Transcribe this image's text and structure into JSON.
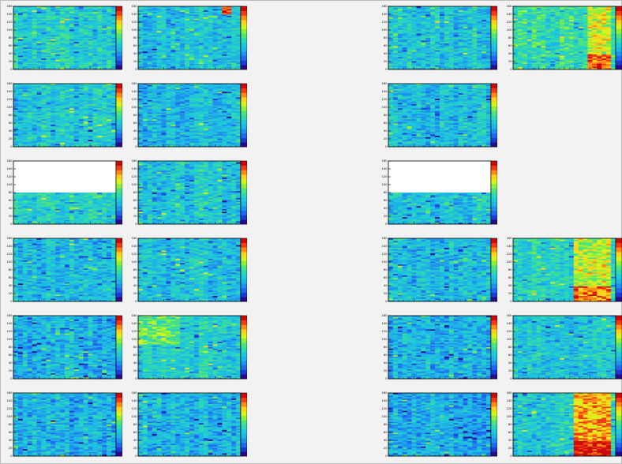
{
  "canvas": {
    "background": "#f2f2f2",
    "grid": {
      "rows": 6,
      "cols": 4
    }
  },
  "palette": [
    "#2a0a8a",
    "#1a3bd6",
    "#2266f0",
    "#1f90ee",
    "#1fb3e6",
    "#20c9d8",
    "#2fd8b0",
    "#4ee37c",
    "#8ef03a",
    "#d8f21c",
    "#ffd11a",
    "#ff8a14",
    "#f23a14",
    "#cc0a0a"
  ],
  "chart_data": [
    {
      "panel": "r1c1",
      "type": "heatmap",
      "row": 1,
      "col": 1,
      "ylim": [
        0,
        160
      ],
      "yticks": [
        0,
        20,
        40,
        60,
        80,
        100,
        120,
        140,
        160
      ],
      "empty_above": null,
      "hot_region": null,
      "base_level": 5.2,
      "noise": 1.6,
      "seed": 11
    },
    {
      "panel": "r1c2",
      "type": "heatmap",
      "row": 1,
      "col": 2,
      "ylim": [
        0,
        160
      ],
      "yticks": [
        0,
        20,
        40,
        60,
        80,
        100,
        120,
        140,
        160
      ],
      "empty_above": null,
      "hot_region": {
        "x": [
          0.82,
          0.9
        ],
        "y": [
          0.86,
          1.0
        ],
        "level": 13
      },
      "base_level": 4.6,
      "noise": 1.5,
      "seed": 12
    },
    {
      "panel": "r1c3",
      "type": "heatmap",
      "row": 1,
      "col": 3,
      "ylim": [
        0,
        160
      ],
      "yticks": [
        0,
        20,
        40,
        60,
        80,
        100,
        120,
        140,
        160
      ],
      "empty_above": null,
      "hot_region": null,
      "base_level": 4.8,
      "noise": 1.7,
      "seed": 13
    },
    {
      "panel": "r1c4",
      "type": "heatmap",
      "row": 1,
      "col": 4,
      "ylim": [
        0,
        160
      ],
      "yticks": [
        0,
        20,
        40,
        60,
        80,
        100,
        120,
        140,
        160
      ],
      "empty_above": null,
      "hot_region": {
        "x": [
          0.74,
          0.96
        ],
        "y": [
          0.0,
          1.0
        ],
        "level": 9
      },
      "base_level": 6.0,
      "noise": 1.6,
      "seed": 14
    },
    {
      "panel": "r2c1",
      "type": "heatmap",
      "row": 2,
      "col": 1,
      "ylim": [
        0,
        160
      ],
      "yticks": [
        0,
        20,
        40,
        60,
        80,
        100,
        120,
        140,
        160
      ],
      "empty_above": null,
      "hot_region": null,
      "base_level": 4.9,
      "noise": 1.6,
      "seed": 21
    },
    {
      "panel": "r2c2",
      "type": "heatmap",
      "row": 2,
      "col": 2,
      "ylim": [
        0,
        160
      ],
      "yticks": [
        0,
        20,
        40,
        60,
        80,
        100,
        120,
        140,
        160
      ],
      "empty_above": null,
      "hot_region": null,
      "base_level": 4.5,
      "noise": 1.6,
      "seed": 22
    },
    {
      "panel": "r2c3",
      "type": "heatmap",
      "row": 2,
      "col": 3,
      "ylim": [
        0,
        160
      ],
      "yticks": [
        0,
        20,
        40,
        60,
        80,
        100,
        120,
        140,
        160
      ],
      "empty_above": null,
      "hot_region": null,
      "base_level": 4.4,
      "noise": 1.7,
      "seed": 23
    },
    {
      "panel": "r3c1",
      "type": "heatmap",
      "row": 3,
      "col": 1,
      "ylim": [
        0,
        160
      ],
      "yticks": [
        0,
        20,
        40,
        60,
        80,
        100,
        120,
        140,
        160
      ],
      "empty_above": 80,
      "hot_region": null,
      "base_level": 5.4,
      "noise": 1.5,
      "seed": 31
    },
    {
      "panel": "r3c2",
      "type": "heatmap",
      "row": 3,
      "col": 2,
      "ylim": [
        0,
        160
      ],
      "yticks": [
        0,
        20,
        40,
        60,
        80,
        100,
        120,
        140,
        160
      ],
      "empty_above": null,
      "hot_region": null,
      "base_level": 4.9,
      "noise": 1.6,
      "seed": 32
    },
    {
      "panel": "r3c3",
      "type": "heatmap",
      "row": 3,
      "col": 3,
      "ylim": [
        0,
        160
      ],
      "yticks": [
        0,
        20,
        40,
        60,
        80,
        100,
        120,
        140,
        160
      ],
      "empty_above": 80,
      "hot_region": null,
      "base_level": 4.7,
      "noise": 1.6,
      "seed": 33
    },
    {
      "panel": "r4c1",
      "type": "heatmap",
      "row": 4,
      "col": 1,
      "ylim": [
        0,
        160
      ],
      "yticks": [
        0,
        20,
        40,
        60,
        80,
        100,
        120,
        140,
        160
      ],
      "empty_above": null,
      "hot_region": null,
      "base_level": 4.4,
      "noise": 1.7,
      "seed": 41
    },
    {
      "panel": "r4c2",
      "type": "heatmap",
      "row": 4,
      "col": 2,
      "ylim": [
        0,
        160
      ],
      "yticks": [
        0,
        20,
        40,
        60,
        80,
        100,
        120,
        140,
        160
      ],
      "empty_above": null,
      "hot_region": null,
      "base_level": 4.5,
      "noise": 1.6,
      "seed": 42
    },
    {
      "panel": "r4c3",
      "type": "heatmap",
      "row": 4,
      "col": 3,
      "ylim": [
        0,
        160
      ],
      "yticks": [
        0,
        20,
        40,
        60,
        80,
        100,
        120,
        140,
        160
      ],
      "empty_above": null,
      "hot_region": null,
      "base_level": 4.4,
      "noise": 1.7,
      "seed": 43
    },
    {
      "panel": "r4c4",
      "type": "heatmap",
      "row": 4,
      "col": 4,
      "ylim": [
        0,
        160
      ],
      "yticks": [
        0,
        20,
        40,
        60,
        80,
        100,
        120,
        140,
        160
      ],
      "empty_above": null,
      "hot_region": {
        "x": [
          0.58,
          0.94
        ],
        "y": [
          0.0,
          1.0
        ],
        "level": 8.6
      },
      "base_level": 5.4,
      "noise": 1.6,
      "seed": 44
    },
    {
      "panel": "r5c1",
      "type": "heatmap",
      "row": 5,
      "col": 1,
      "ylim": [
        0,
        160
      ],
      "yticks": [
        0,
        20,
        40,
        60,
        80,
        100,
        120,
        140,
        160
      ],
      "empty_above": null,
      "hot_region": null,
      "base_level": 4.2,
      "noise": 1.7,
      "seed": 51
    },
    {
      "panel": "r5c2",
      "type": "heatmap",
      "row": 5,
      "col": 2,
      "ylim": [
        0,
        160
      ],
      "yticks": [
        0,
        20,
        40,
        60,
        80,
        100,
        120,
        140,
        160
      ],
      "empty_above": null,
      "hot_region": {
        "x": [
          0.0,
          0.42
        ],
        "y": [
          0.55,
          1.0
        ],
        "level": 7.2
      },
      "base_level": 5.2,
      "noise": 1.5,
      "seed": 52
    },
    {
      "panel": "r5c3",
      "type": "heatmap",
      "row": 5,
      "col": 3,
      "ylim": [
        0,
        160
      ],
      "yticks": [
        0,
        20,
        40,
        60,
        80,
        100,
        120,
        140,
        160
      ],
      "empty_above": null,
      "hot_region": null,
      "base_level": 4.2,
      "noise": 1.7,
      "seed": 53
    },
    {
      "panel": "r5c4",
      "type": "heatmap",
      "row": 5,
      "col": 4,
      "ylim": [
        0,
        160
      ],
      "yticks": [
        0,
        20,
        40,
        60,
        80,
        100,
        120,
        140,
        160
      ],
      "empty_above": null,
      "hot_region": null,
      "base_level": 4.7,
      "noise": 1.6,
      "seed": 54
    },
    {
      "panel": "r6c1",
      "type": "heatmap",
      "row": 6,
      "col": 1,
      "ylim": [
        0,
        160
      ],
      "yticks": [
        0,
        20,
        40,
        60,
        80,
        100,
        120,
        140,
        160
      ],
      "empty_above": null,
      "hot_region": null,
      "base_level": 4.0,
      "noise": 1.7,
      "seed": 61
    },
    {
      "panel": "r6c2",
      "type": "heatmap",
      "row": 6,
      "col": 2,
      "ylim": [
        0,
        160
      ],
      "yticks": [
        0,
        20,
        40,
        60,
        80,
        100,
        120,
        140,
        160
      ],
      "empty_above": null,
      "hot_region": null,
      "base_level": 4.3,
      "noise": 1.6,
      "seed": 62
    },
    {
      "panel": "r6c3",
      "type": "heatmap",
      "row": 6,
      "col": 3,
      "ylim": [
        0,
        160
      ],
      "yticks": [
        0,
        20,
        40,
        60,
        80,
        100,
        120,
        140,
        160
      ],
      "empty_above": null,
      "hot_region": null,
      "base_level": 3.9,
      "noise": 1.7,
      "seed": 63
    },
    {
      "panel": "r6c4",
      "type": "heatmap",
      "row": 6,
      "col": 4,
      "ylim": [
        0,
        160
      ],
      "yticks": [
        0,
        20,
        40,
        60,
        80,
        100,
        120,
        140,
        160
      ],
      "empty_above": null,
      "hot_region": {
        "x": [
          0.58,
          0.96
        ],
        "y": [
          0.0,
          1.0
        ],
        "level": 10.5
      },
      "base_level": 5.2,
      "noise": 1.7,
      "seed": 64
    }
  ]
}
